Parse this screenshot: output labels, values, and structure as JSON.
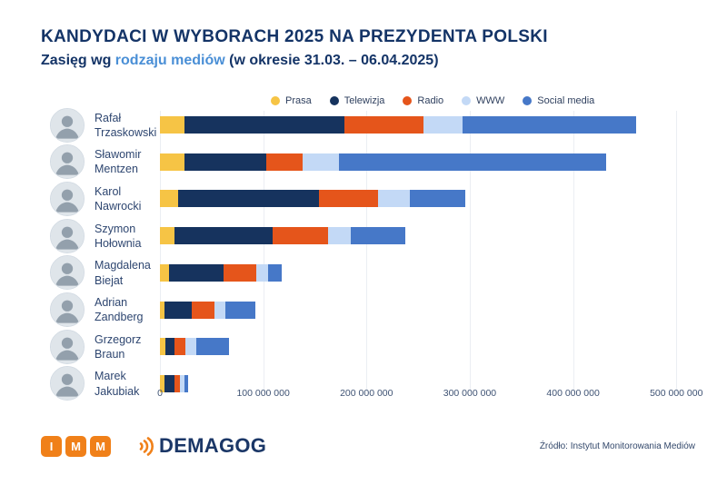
{
  "header": {
    "title": "KANDYDACI W WYBORACH 2025 NA PREZYDENTA POLSKI",
    "subtitle_prefix": "Zasięg wg ",
    "subtitle_highlight": "rodzaju mediów",
    "subtitle_suffix": " (w okresie 31.03. – 06.04.2025)"
  },
  "colors": {
    "title_navy": "#143467",
    "subtitle_highlight_blue": "#4a8fd6",
    "prasa": "#f6c445",
    "telewizja": "#16335e",
    "radio": "#e5551b",
    "www": "#c3d9f6",
    "social_media": "#4678c8",
    "gridline": "#ebeef3",
    "imm_orange": "#f08019",
    "demagog_navy": "#1b3767"
  },
  "chart_data": {
    "type": "bar",
    "orientation": "horizontal",
    "stacked": true,
    "title": "Zasięg wg rodzaju mediów (w okresie 31.03. – 06.04.2025)",
    "xlabel": "",
    "ylabel": "",
    "grid": true,
    "legend_position": "top",
    "xlim": [
      0,
      520000000
    ],
    "x_tick_values": [
      0,
      100000000,
      200000000,
      300000000,
      400000000,
      500000000
    ],
    "x_tick_labels": [
      "0",
      "100 000 000",
      "200 000 000",
      "300 000 000",
      "400 000 000",
      "500 000 000"
    ],
    "categories": [
      "Rafał Trzaskowski",
      "Sławomir Mentzen",
      "Karol Nawrocki",
      "Szymon Hołownia",
      "Magdalena Biejat",
      "Adrian Zandberg",
      "Grzegorz Braun",
      "Marek Jakubiak"
    ],
    "series": [
      {
        "name": "Prasa",
        "color": "#f6c445",
        "values": [
          24000000,
          24000000,
          18000000,
          14000000,
          9000000,
          4000000,
          5000000,
          4000000
        ]
      },
      {
        "name": "Telewizja",
        "color": "#16335e",
        "values": [
          155000000,
          79000000,
          136000000,
          95000000,
          53000000,
          27000000,
          9000000,
          10000000
        ]
      },
      {
        "name": "Radio",
        "color": "#e5551b",
        "values": [
          76000000,
          35000000,
          57000000,
          54000000,
          31000000,
          22000000,
          11000000,
          5000000
        ]
      },
      {
        "name": "WWW",
        "color": "#c3d9f6",
        "values": [
          38000000,
          35000000,
          31000000,
          22000000,
          12000000,
          10000000,
          10000000,
          5000000
        ]
      },
      {
        "name": "Social media",
        "color": "#4678c8",
        "values": [
          168000000,
          259000000,
          54000000,
          53000000,
          13000000,
          29000000,
          32000000,
          3000000
        ]
      }
    ]
  },
  "footer": {
    "imm_letters": [
      "I",
      "M",
      "M"
    ],
    "demagog": "DEMAGOG",
    "source": "Źródło: Instytut Monitorowania Mediów"
  }
}
